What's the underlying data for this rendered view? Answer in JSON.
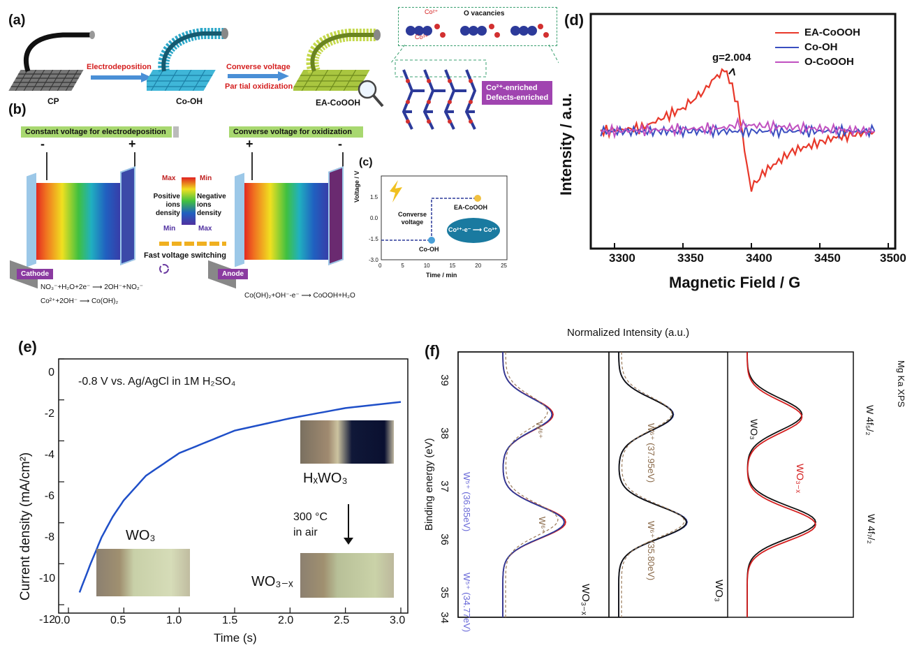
{
  "panel_a": {
    "label": "(a)",
    "step1": "Electrodeposition",
    "step2a": "Converse voltage",
    "step2b": "Par tial oxidization",
    "cp": "CP",
    "co_oh": "Co-OH",
    "ea_cooh": "EA-CoOOH",
    "co2": "Co²⁺",
    "co3": "Co³⁺",
    "o_vac": "O vacancies",
    "box1": "Co²⁺-enriched",
    "box2": "Defects-enriched"
  },
  "panel_b": {
    "label": "(b)",
    "bar1": "Constant voltage for electrodeposition",
    "bar2": "Converse voltage for oxidization",
    "minus": "-",
    "plus": "+",
    "max": "Max",
    "min": "Min",
    "pos1": "Positive",
    "pos2": "ions",
    "pos3": "density",
    "neg1": "Negative",
    "neg2": "ions",
    "neg3": "density",
    "fast": "Fast voltage switching",
    "cathode": "Cathode",
    "anode": "Anode",
    "eq1": "NO₃⁻+H₂O+2e⁻ ⟶ 2OH⁻+NO₂⁻",
    "eq2": "Co²⁺+2OH⁻ ⟶ Co(OH)₂",
    "eq3": "Co(OH)₂+OH⁻-e⁻ ⟶ CoOOH+H₂O"
  },
  "panel_c": {
    "label": "(c)",
    "ylabel": "Voltage / V",
    "xlabel": "Time / min",
    "yticks": [
      "1.5",
      "0.0",
      "-1.5",
      "-3.0"
    ],
    "xticks": [
      "0",
      "5",
      "10",
      "15",
      "20",
      "25"
    ],
    "conv1": "Converse",
    "conv2": "voltage",
    "pt1": "EA-CoOOH",
    "pt2": "Co-OH",
    "rxn": "Co²⁺-e⁻ ⟶ Co³⁺"
  },
  "panel_d": {
    "label": "(d)",
    "ylabel": "Intensity / a.u.",
    "xlabel": "Magnetic Field / G",
    "annotation": "g=2.004",
    "xticks": [
      "3300",
      "3350",
      "3400",
      "3450",
      "3500"
    ]
  },
  "panel_e": {
    "label": "(e)",
    "condition": "-0.8 V vs. Ag/AgCl in 1M H₂SO₄",
    "ylabel": "Current density (mA/cm²)",
    "xlabel": "Time (s)",
    "xticks": [
      "0.0",
      "0.5",
      "1.0",
      "1.5",
      "2.0",
      "2.5",
      "3.0"
    ],
    "yticks": [
      "0",
      "-2",
      "-4",
      "-6",
      "-8",
      "-10",
      "-12"
    ],
    "wo3": "WO₃",
    "hxwo3": "HₓWO₃",
    "temp1": "300 °C",
    "temp2": "in air",
    "wo3x": "WO₃₋ₓ"
  },
  "panel_f": {
    "label": "(f)",
    "top": "Normalized Intensity (a.u.)",
    "ylabel": "Binding energy (eV)",
    "yticks": [
      "39",
      "38",
      "37",
      "36",
      "35",
      "34"
    ],
    "w6": "W⁶⁺",
    "w5": "W⁵⁺",
    "e1": "(36.85eV)",
    "e2": "(34.77eV)",
    "e3": "(37.95eV)",
    "e4": "(35.80eV)",
    "s1": "WO₃₋ₓ",
    "s2": "WO₃",
    "xps": "Mg Ka XPS",
    "w52": "W 4f₅/₂",
    "w72": "W 4f₇/₂",
    "leg_wo3": "WO₃",
    "leg_wo3x": "WO₃₋ₓ"
  },
  "chart_data": [
    {
      "type": "line",
      "xlabel": "Magnetic Field / G",
      "ylabel": "Intensity / a.u.",
      "xlim": [
        3288,
        3500
      ],
      "series": [
        {
          "name": "EA-CoOOH",
          "color": "#e8382a",
          "x": [
            3290,
            3320,
            3350,
            3365,
            3375,
            3382,
            3390,
            3395,
            3400,
            3410,
            3430,
            3460,
            3490
          ],
          "y": [
            0,
            0.05,
            0.35,
            0.6,
            0.85,
            0.9,
            0.4,
            -0.3,
            -0.85,
            -0.6,
            -0.3,
            -0.1,
            0
          ]
        },
        {
          "name": "Co-OH",
          "color": "#3a4ec0",
          "x": [
            3290,
            3490
          ],
          "y": [
            0,
            0
          ]
        },
        {
          "name": "O-CoOOH",
          "color": "#c050c0",
          "x": [
            3290,
            3380,
            3390,
            3490
          ],
          "y": [
            0,
            0.05,
            0.1,
            0
          ]
        }
      ]
    },
    {
      "type": "line",
      "xlabel": "Time (s)",
      "ylabel": "Current density (mA/cm²)",
      "xlim": [
        0,
        3.1
      ],
      "ylim": [
        -12.2,
        0
      ],
      "series": [
        {
          "name": "",
          "color": "#1f4fc8",
          "x": [
            0.1,
            0.2,
            0.3,
            0.4,
            0.5,
            0.7,
            1.0,
            1.5,
            2.0,
            2.5,
            3.0
          ],
          "y": [
            -11.4,
            -10.0,
            -8.7,
            -7.7,
            -6.9,
            -5.7,
            -4.6,
            -3.5,
            -2.9,
            -2.4,
            -2.1
          ]
        }
      ]
    }
  ]
}
